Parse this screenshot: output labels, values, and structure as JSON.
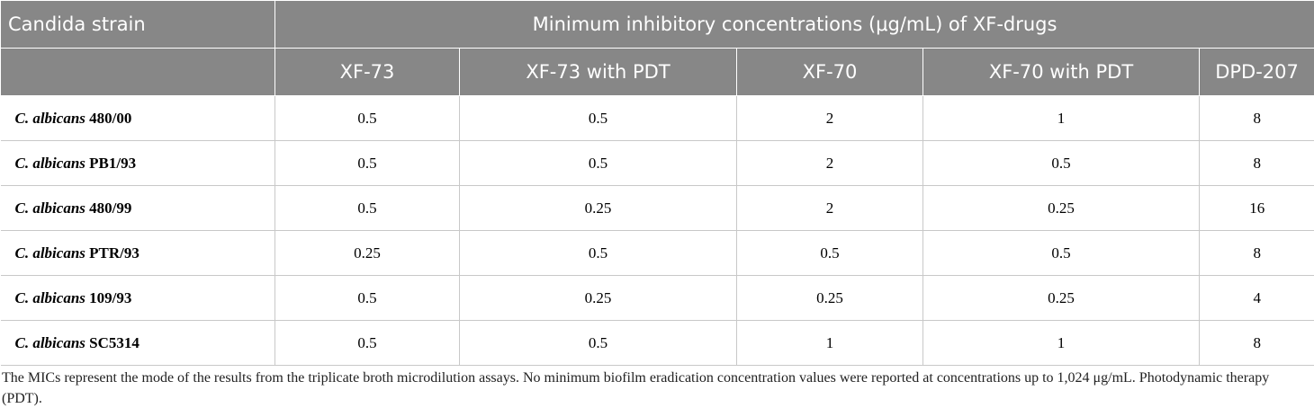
{
  "table": {
    "header": {
      "strain": "Candida strain",
      "group": "Minimum inhibitory concentrations (μg/mL) of XF-drugs",
      "columns": [
        "XF-73",
        "XF-73 with PDT",
        "XF-70",
        "XF-70 with PDT",
        "DPD-207"
      ]
    },
    "rows": [
      {
        "species": "C. albicans",
        "strain": "480/00",
        "values": [
          0.5,
          0.5,
          2,
          1,
          8
        ]
      },
      {
        "species": "C. albicans",
        "strain": "PB1/93",
        "values": [
          0.5,
          0.5,
          2,
          0.5,
          8
        ]
      },
      {
        "species": "C. albicans",
        "strain": "480/99",
        "values": [
          0.5,
          0.25,
          2,
          0.25,
          16
        ]
      },
      {
        "species": "C. albicans",
        "strain": "PTR/93",
        "values": [
          0.25,
          0.5,
          0.5,
          0.5,
          8
        ]
      },
      {
        "species": "C. albicans",
        "strain": "109/93",
        "values": [
          0.5,
          0.25,
          0.25,
          0.25,
          4
        ]
      },
      {
        "species": "C. albicans",
        "strain": "SC5314",
        "values": [
          0.5,
          0.5,
          1,
          1,
          8
        ]
      }
    ]
  },
  "footnote": "The MICs represent the mode of the results from the triplicate broth microdilution assays. No minimum biofilm eradication concentration values were reported at concentrations up to 1,024 μg/mL. Photodynamic therapy (PDT)."
}
